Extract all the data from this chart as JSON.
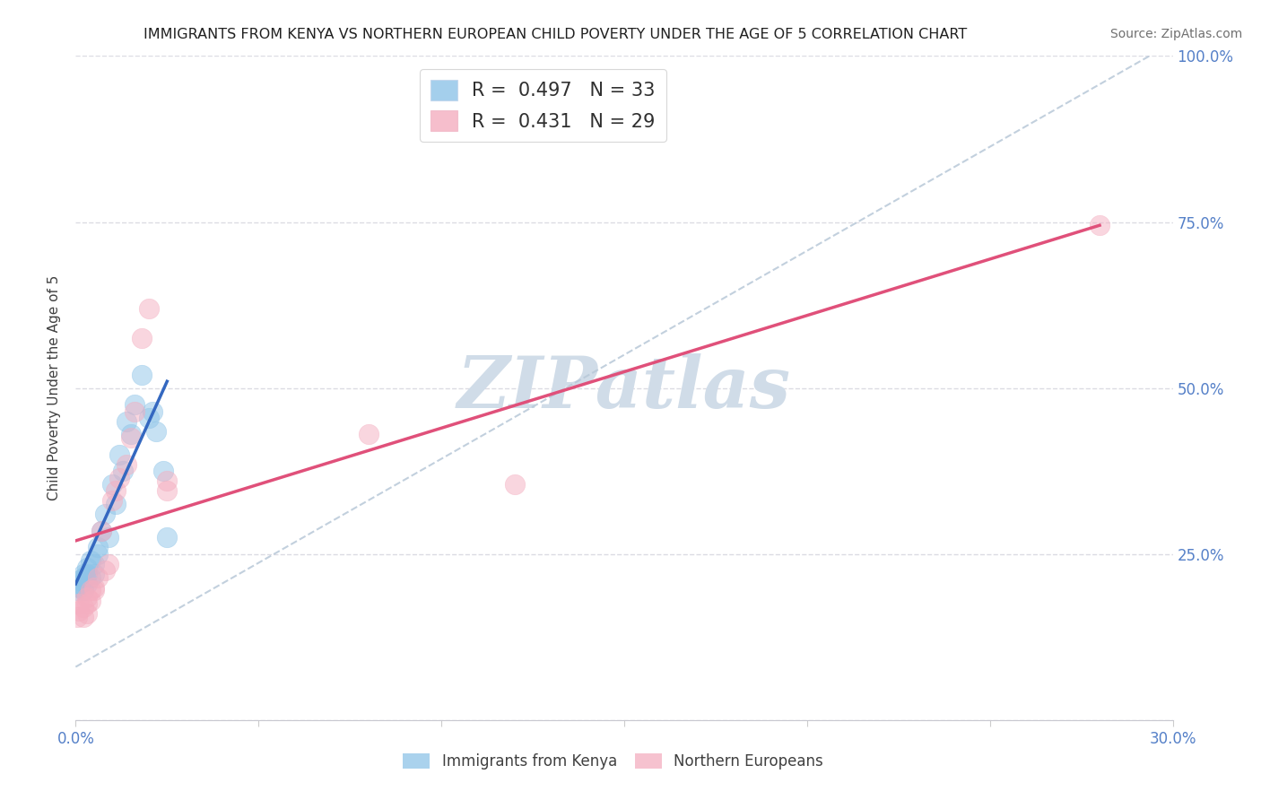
{
  "title": "IMMIGRANTS FROM KENYA VS NORTHERN EUROPEAN CHILD POVERTY UNDER THE AGE OF 5 CORRELATION CHART",
  "source": "Source: ZipAtlas.com",
  "ylabel": "Child Poverty Under the Age of 5",
  "x_min": 0.0,
  "x_max": 0.3,
  "y_min": 0.0,
  "y_max": 1.0,
  "x_ticks": [
    0.0,
    0.05,
    0.1,
    0.15,
    0.2,
    0.25,
    0.3
  ],
  "x_tick_labels": [
    "0.0%",
    "",
    "",
    "",
    "",
    "",
    "30.0%"
  ],
  "y_ticks": [
    0.0,
    0.25,
    0.5,
    0.75,
    1.0
  ],
  "y_tick_labels": [
    "",
    "25.0%",
    "50.0%",
    "75.0%",
    "100.0%"
  ],
  "legend_items": [
    {
      "label_r": "R = ",
      "label_val": "0.497",
      "label_n": "   N = ",
      "label_nval": "33",
      "color": "#aac8e8"
    },
    {
      "label_r": "R = ",
      "label_val": "0.431",
      "label_n": "   N = ",
      "label_nval": "29",
      "color": "#f4aec0"
    }
  ],
  "legend_bottom": [
    "Immigrants from Kenya",
    "Northern Europeans"
  ],
  "kenya_scatter_x": [
    0.0005,
    0.001,
    0.001,
    0.0015,
    0.002,
    0.002,
    0.002,
    0.0025,
    0.003,
    0.003,
    0.003,
    0.004,
    0.004,
    0.005,
    0.005,
    0.006,
    0.006,
    0.007,
    0.008,
    0.009,
    0.01,
    0.011,
    0.012,
    0.013,
    0.014,
    0.015,
    0.016,
    0.018,
    0.02,
    0.022,
    0.024,
    0.021,
    0.025
  ],
  "kenya_scatter_y": [
    0.195,
    0.2,
    0.21,
    0.205,
    0.195,
    0.215,
    0.22,
    0.215,
    0.205,
    0.22,
    0.23,
    0.215,
    0.24,
    0.22,
    0.235,
    0.25,
    0.26,
    0.285,
    0.31,
    0.275,
    0.355,
    0.325,
    0.4,
    0.375,
    0.45,
    0.43,
    0.475,
    0.52,
    0.455,
    0.435,
    0.375,
    0.465,
    0.275
  ],
  "northern_scatter_x": [
    0.0005,
    0.001,
    0.001,
    0.002,
    0.002,
    0.003,
    0.003,
    0.003,
    0.004,
    0.004,
    0.005,
    0.005,
    0.006,
    0.007,
    0.008,
    0.009,
    0.01,
    0.011,
    0.012,
    0.014,
    0.015,
    0.016,
    0.018,
    0.02,
    0.025,
    0.025,
    0.08,
    0.12,
    0.28
  ],
  "northern_scatter_y": [
    0.155,
    0.165,
    0.175,
    0.17,
    0.155,
    0.185,
    0.175,
    0.16,
    0.18,
    0.195,
    0.2,
    0.195,
    0.215,
    0.285,
    0.225,
    0.235,
    0.33,
    0.345,
    0.365,
    0.385,
    0.425,
    0.465,
    0.575,
    0.62,
    0.36,
    0.345,
    0.43,
    0.355,
    0.745
  ],
  "kenya_line_x": [
    0.0,
    0.025
  ],
  "kenya_line_y": [
    0.205,
    0.51
  ],
  "northern_line_x": [
    0.0,
    0.28
  ],
  "northern_line_y": [
    0.27,
    0.745
  ],
  "diagonal_line_x": [
    0.0,
    0.3
  ],
  "diagonal_line_y": [
    0.08,
    1.02
  ],
  "kenya_color": "#8ec4e8",
  "northern_color": "#f4aec0",
  "kenya_scatter_edge": "#8ec4e8",
  "northern_scatter_edge": "#f4aec0",
  "kenya_line_color": "#3468c0",
  "northern_line_color": "#e0507a",
  "diagonal_color": "#b8c8d8",
  "watermark_text": "ZIPatlas",
  "watermark_color": "#d0dce8",
  "background_color": "#ffffff",
  "grid_color": "#d8d8e0"
}
